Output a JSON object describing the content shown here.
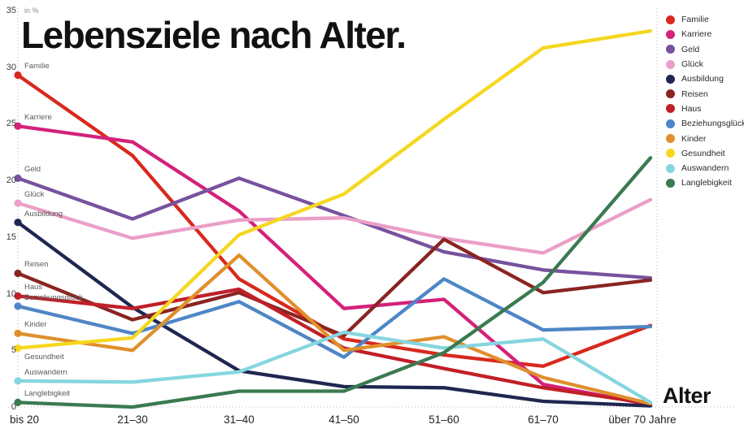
{
  "header": {
    "title": "Lebensziele nach Alter."
  },
  "chart_data": {
    "type": "line",
    "title": "Lebensziele nach Alter.",
    "unit_label": "in %",
    "xlabel": "Alter",
    "categories": [
      "bis 20",
      "21–30",
      "31–40",
      "41–50",
      "51–60",
      "61–70",
      "über 70 Jahre"
    ],
    "ylim": [
      0,
      35
    ],
    "yticks": [
      0,
      5,
      10,
      15,
      20,
      25,
      30,
      35
    ],
    "grid": "none",
    "legend_position": "right",
    "series": [
      {
        "name": "Familie",
        "color": "#d8291d",
        "label_dy": -8,
        "values": [
          29.3,
          22.2,
          11.3,
          6.0,
          4.6,
          3.6,
          7.2
        ]
      },
      {
        "name": "Karriere",
        "color": "#d4217a",
        "label_dy": -8,
        "values": [
          24.8,
          23.4,
          17.3,
          8.7,
          9.5,
          2.0,
          0.2
        ]
      },
      {
        "name": "Geld",
        "color": "#77529e",
        "label_dy": -8,
        "values": [
          20.2,
          16.6,
          20.2,
          16.9,
          13.7,
          12.1,
          11.4
        ]
      },
      {
        "name": "Glück",
        "color": "#ea9fc7",
        "label_dy": -8,
        "values": [
          18.0,
          14.9,
          16.5,
          16.7,
          14.9,
          13.6,
          18.3
        ]
      },
      {
        "name": "Ausbildung",
        "color": "#1f2750",
        "label_dy": -8,
        "values": [
          16.3,
          8.8,
          3.2,
          1.8,
          1.7,
          0.5,
          0.1
        ]
      },
      {
        "name": "Reisen",
        "color": "#8a2421",
        "label_dy": -8,
        "values": [
          11.8,
          7.7,
          10.1,
          6.3,
          14.8,
          10.1,
          11.2
        ]
      },
      {
        "name": "Haus",
        "color": "#c11f28",
        "label_dy": -8,
        "values": [
          9.8,
          8.7,
          10.4,
          5.2,
          3.4,
          1.7,
          0.3
        ]
      },
      {
        "name": "Beziehungsglück",
        "color": "#4e86c6",
        "label_dy": -8,
        "values": [
          8.9,
          6.5,
          9.3,
          4.4,
          11.3,
          6.8,
          7.1
        ]
      },
      {
        "name": "Kinder",
        "color": "#df902c",
        "label_dy": -8,
        "values": [
          6.5,
          5.0,
          13.4,
          5.0,
          6.2,
          2.6,
          0.3
        ]
      },
      {
        "name": "Gesundheit",
        "color": "#f6d71f",
        "label_dy": 6,
        "values": [
          5.2,
          6.1,
          15.2,
          18.8,
          25.4,
          31.7,
          33.2
        ]
      },
      {
        "name": "Auswandern",
        "color": "#85d6df",
        "label_dy": -8,
        "values": [
          2.3,
          2.2,
          3.1,
          6.6,
          5.2,
          6.0,
          0.4
        ]
      },
      {
        "name": "Langlebigkeit",
        "color": "#3a7a50",
        "label_dy": -8,
        "values": [
          0.4,
          0.0,
          1.4,
          1.4,
          4.8,
          11.0,
          22.0
        ]
      }
    ]
  }
}
